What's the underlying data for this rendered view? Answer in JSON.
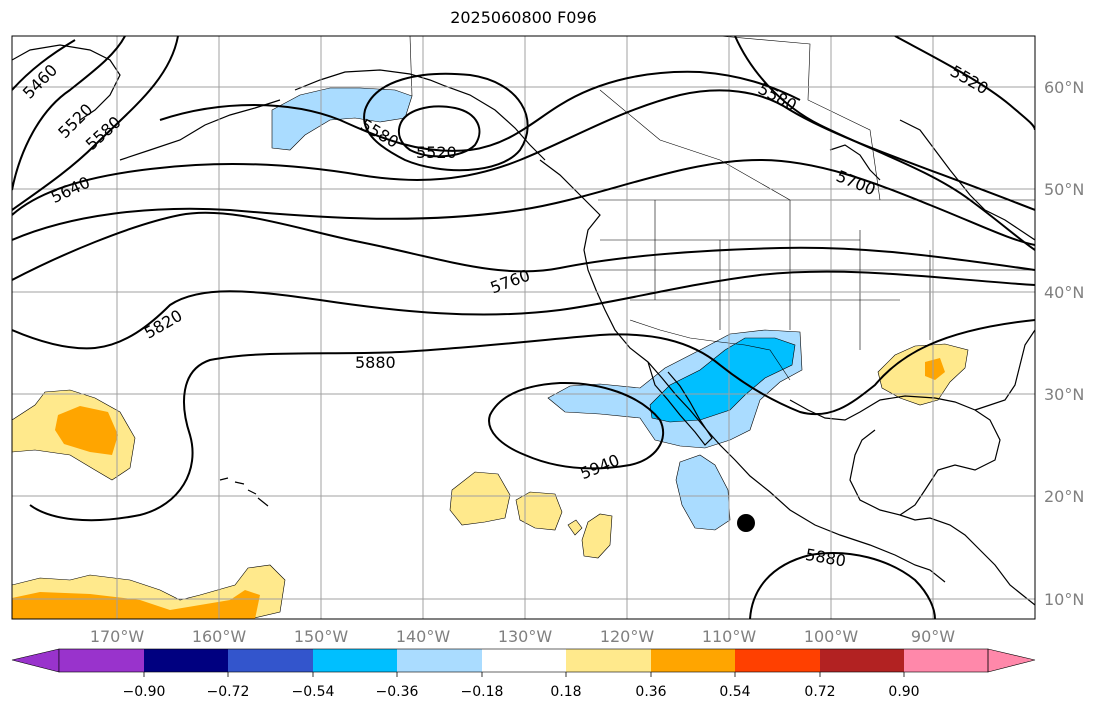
{
  "title": "2025060800 F096",
  "map": {
    "lon_labels": [
      "170°W",
      "160°W",
      "150°W",
      "140°W",
      "130°W",
      "120°W",
      "110°W",
      "100°W",
      "90°W"
    ],
    "lat_labels": [
      "60°N",
      "50°N",
      "40°N",
      "30°N",
      "20°N",
      "10°N"
    ],
    "contour_labels": [
      "5460",
      "5520",
      "5580",
      "5640",
      "5580",
      "5520",
      "5700",
      "5580",
      "5520",
      "5760",
      "5820",
      "5880",
      "5940",
      "5880"
    ],
    "colors": {
      "light_yellow": "#ffe98c",
      "orange": "#ffa500",
      "light_blue": "#aadcff",
      "blue": "#00bfff",
      "land_line": "#000000",
      "grid": "#a0a0a0"
    },
    "marker": "black-dot"
  },
  "colorbar": {
    "tick_labels": [
      "−0.90",
      "−0.72",
      "−0.54",
      "−0.36",
      "−0.18",
      "0.18",
      "0.36",
      "0.54",
      "0.72",
      "0.90"
    ],
    "colors": [
      "#9933cc",
      "#000080",
      "#3355cc",
      "#00bfff",
      "#aadcff",
      "#ffffff",
      "#ffe98c",
      "#ffa500",
      "#ff4000",
      "#b22222",
      "#ff88aa"
    ]
  }
}
